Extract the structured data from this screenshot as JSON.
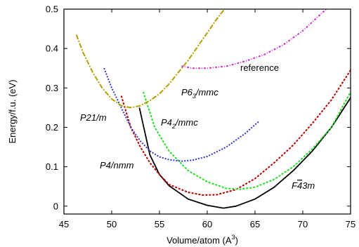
{
  "chart_data": {
    "type": "line",
    "xlabel": "Volume/atom (A",
    "xlabel_sup": "3",
    "xlabel_close": ")",
    "ylabel": "Energy/f.u. (eV)",
    "xlim": [
      45,
      75
    ],
    "ylim": [
      -0.02,
      0.5
    ],
    "xticks": [
      45,
      50,
      55,
      60,
      65,
      70,
      75
    ],
    "yticks": [
      0,
      0.1,
      0.2,
      0.3,
      0.4,
      0.5
    ],
    "ytick_labels": [
      "0",
      "0.1",
      "0.2",
      "0.3",
      "0.4",
      "0.5"
    ],
    "grid": false,
    "annotations": {
      "reference": "reference",
      "p21m": "P21/m",
      "p63_main": "P6",
      "p63_sub": "3",
      "p63_tail": "/mmc",
      "p42_main": "P4",
      "p42_sub": "2",
      "p42_tail": "/mmc",
      "p4nmm": "P4/nmm",
      "f43m_main": "F",
      "f43m_bar": "4",
      "f43m_tail": "3m"
    },
    "series": [
      {
        "id": "F-43m",
        "color": "#000000",
        "dash": "",
        "points": [
          [
            52.9,
            0.25
          ],
          [
            54,
            0.13
          ],
          [
            55,
            0.08
          ],
          [
            56,
            0.052
          ],
          [
            58,
            0.018
          ],
          [
            60,
            0.002
          ],
          [
            61.7,
            -0.005
          ],
          [
            63,
            0.0
          ],
          [
            65,
            0.018
          ],
          [
            67,
            0.048
          ],
          [
            69,
            0.09
          ],
          [
            71,
            0.14
          ],
          [
            73,
            0.2
          ],
          [
            75,
            0.275
          ]
        ]
      },
      {
        "id": "P4/nmm",
        "color": "#b30000",
        "dash": "3,2",
        "points": [
          [
            51,
            0.28
          ],
          [
            52,
            0.2
          ],
          [
            53,
            0.15
          ],
          [
            54,
            0.11
          ],
          [
            55,
            0.08
          ],
          [
            56,
            0.055
          ],
          [
            58,
            0.035
          ],
          [
            59.5,
            0.028
          ],
          [
            61,
            0.029
          ],
          [
            63,
            0.042
          ],
          [
            65,
            0.07
          ],
          [
            67,
            0.11
          ],
          [
            69,
            0.155
          ],
          [
            71,
            0.21
          ],
          [
            73,
            0.27
          ],
          [
            75,
            0.345
          ]
        ]
      },
      {
        "id": "P4_2/mmc",
        "color": "#22dd22",
        "dash": "3,2",
        "points": [
          [
            53.3,
            0.29
          ],
          [
            54.5,
            0.2
          ],
          [
            56,
            0.14
          ],
          [
            58,
            0.09
          ],
          [
            60,
            0.062
          ],
          [
            62,
            0.045
          ],
          [
            63.5,
            0.043
          ],
          [
            65,
            0.048
          ],
          [
            67,
            0.068
          ],
          [
            69,
            0.1
          ],
          [
            71,
            0.145
          ],
          [
            73,
            0.2
          ],
          [
            75,
            0.29
          ]
        ]
      },
      {
        "id": "P21/m",
        "color": "#3333cc",
        "dash": "2,2",
        "points": [
          [
            49.2,
            0.35
          ],
          [
            50,
            0.3
          ],
          [
            51,
            0.25
          ],
          [
            52,
            0.2
          ],
          [
            53,
            0.165
          ],
          [
            54,
            0.14
          ],
          [
            55,
            0.125
          ],
          [
            56,
            0.118
          ],
          [
            57.3,
            0.114
          ],
          [
            58.5,
            0.117
          ],
          [
            60,
            0.126
          ],
          [
            62,
            0.15
          ],
          [
            64,
            0.185
          ],
          [
            65.4,
            0.215
          ]
        ]
      },
      {
        "id": "P6_3/mmc",
        "color": "#b3a000",
        "dash": "7,2,2,2",
        "points": [
          [
            46.3,
            0.435
          ],
          [
            47,
            0.39
          ],
          [
            48,
            0.34
          ],
          [
            49,
            0.3
          ],
          [
            50,
            0.272
          ],
          [
            51,
            0.255
          ],
          [
            52,
            0.25
          ],
          [
            53,
            0.255
          ],
          [
            54,
            0.268
          ],
          [
            55,
            0.285
          ],
          [
            56,
            0.31
          ],
          [
            57,
            0.34
          ],
          [
            58,
            0.37
          ],
          [
            59,
            0.405
          ],
          [
            60,
            0.44
          ],
          [
            61,
            0.475
          ],
          [
            61.8,
            0.5
          ]
        ]
      },
      {
        "id": "reference",
        "color": "#cc33cc",
        "dash": "3,2,1,2",
        "points": [
          [
            57.3,
            0.355
          ],
          [
            58.5,
            0.35
          ],
          [
            60,
            0.35
          ],
          [
            62,
            0.355
          ],
          [
            64,
            0.368
          ],
          [
            66,
            0.385
          ],
          [
            68,
            0.41
          ],
          [
            70,
            0.445
          ],
          [
            72,
            0.49
          ],
          [
            72.5,
            0.5
          ]
        ]
      }
    ]
  }
}
